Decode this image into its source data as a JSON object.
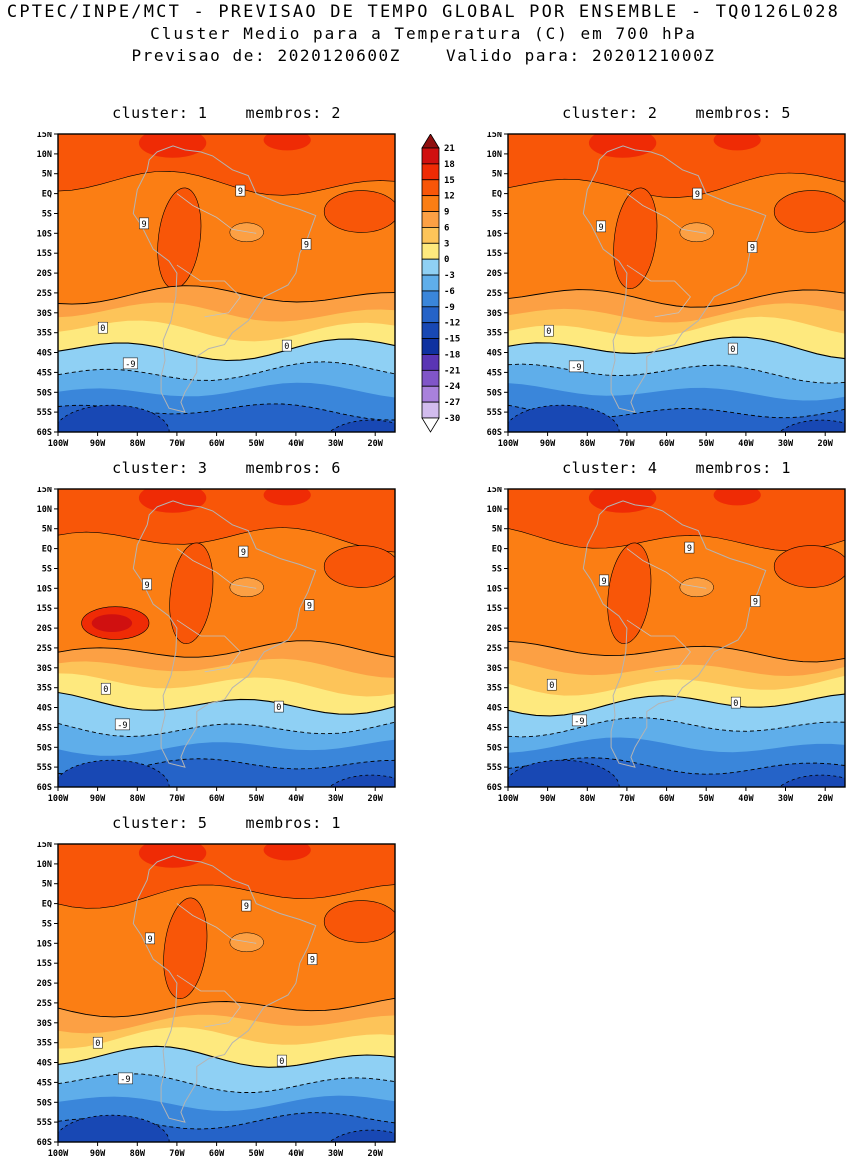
{
  "header": {
    "line1": "CPTEC/INPE/MCT - PREVISAO DE TEMPO GLOBAL POR ENSEMBLE - TQ0126L028",
    "line2": "Cluster Medio para a Temperatura (C) em 700 hPa",
    "line3": "Previsao de: 2020120600Z    Valido para: 2020121000Z"
  },
  "chart_data": {
    "type": "heatmap",
    "title": "Cluster Medio para a Temperatura (C) em 700 hPa",
    "model": "TQ0126L028",
    "forecast_init": "2020120600Z",
    "forecast_valid": "2020121000Z",
    "panels": [
      {
        "cluster": 1,
        "membros": 2,
        "title": "cluster: 1    membros: 2"
      },
      {
        "cluster": 2,
        "membros": 5,
        "title": "cluster: 2    membros: 5"
      },
      {
        "cluster": 3,
        "membros": 6,
        "title": "cluster: 3    membros: 6"
      },
      {
        "cluster": 4,
        "membros": 1,
        "title": "cluster: 4    membros: 1"
      },
      {
        "cluster": 5,
        "membros": 1,
        "title": "cluster: 5    membros: 1"
      }
    ],
    "lat_labels": [
      "15N",
      "10N",
      "5N",
      "EQ",
      "5S",
      "10S",
      "15S",
      "20S",
      "25S",
      "30S",
      "35S",
      "40S",
      "45S",
      "50S",
      "55S",
      "60S"
    ],
    "lon_labels": [
      "100W",
      "90W",
      "80W",
      "70W",
      "60W",
      "50W",
      "40W",
      "30W",
      "20W"
    ],
    "colorbar": {
      "units": "C",
      "levels": [
        21,
        18,
        15,
        12,
        9,
        6,
        3,
        0,
        -3,
        -6,
        -9,
        -12,
        -15,
        -18,
        -21,
        -24,
        -27,
        -30
      ],
      "colors": [
        "#8f0f0f",
        "#d01010",
        "#ef2b05",
        "#f85608",
        "#fb7e14",
        "#fca044",
        "#fdc459",
        "#fee97e",
        "#8fd0f4",
        "#5faeea",
        "#3a86da",
        "#2563c8",
        "#1848b4",
        "#0f31a0",
        "#5a35b4",
        "#8055c8",
        "#a981dc",
        "#d2bcee",
        "#ffffff"
      ]
    },
    "contour_labels": [
      {
        "text": "9",
        "x": 0.27,
        "y": 0.31
      },
      {
        "text": "9",
        "x": 0.55,
        "y": 0.2
      },
      {
        "text": "9",
        "x": 0.74,
        "y": 0.38
      },
      {
        "text": "0",
        "x": 0.13,
        "y": 0.66
      },
      {
        "text": "0",
        "x": 0.67,
        "y": 0.72
      },
      {
        "text": "-9",
        "x": 0.2,
        "y": 0.78
      }
    ]
  }
}
